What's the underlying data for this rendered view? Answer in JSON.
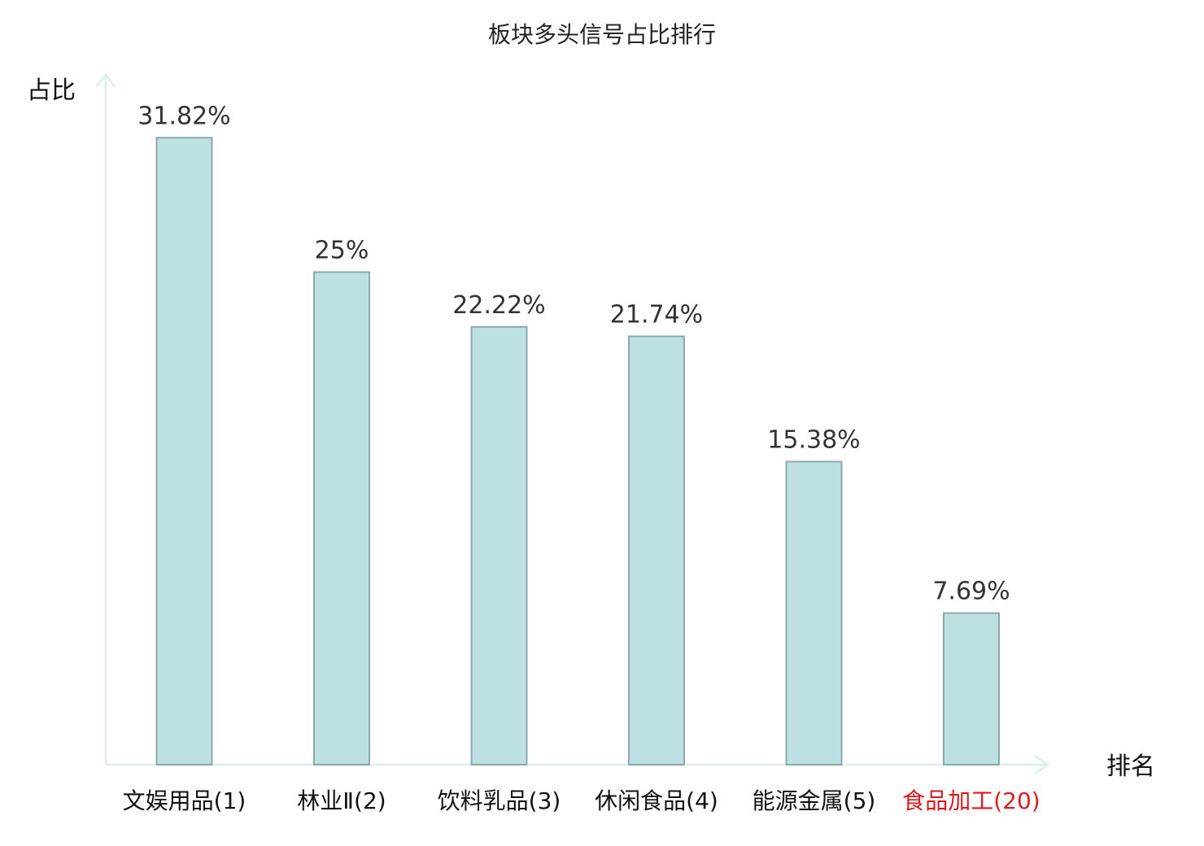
{
  "chart_data": {
    "type": "bar",
    "title": "板块多头信号占比排行",
    "xlabel": "排名",
    "ylabel": "占比",
    "categories": [
      "文娱用品(1)",
      "林业Ⅱ(2)",
      "饮料乳品(3)",
      "休闲食品(4)",
      "能源金属(5)",
      "食品加工(20)"
    ],
    "values": [
      31.82,
      25,
      22.22,
      21.74,
      15.38,
      7.69
    ],
    "value_labels": [
      "31.82%",
      "25%",
      "22.22%",
      "21.74%",
      "15.38%",
      "7.69%"
    ],
    "highlight_index": 5,
    "grid": false,
    "legend": "none"
  },
  "colors": {
    "bar_fill": "#bde0e3",
    "bar_stroke": "#8aa9ac",
    "axis": "#e0f2f0",
    "text": "#111111",
    "value_text": "#333333",
    "highlight_text": "#e0191f"
  }
}
